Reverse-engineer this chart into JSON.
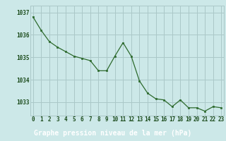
{
  "x": [
    0,
    1,
    2,
    3,
    4,
    5,
    6,
    7,
    8,
    9,
    10,
    11,
    12,
    13,
    14,
    15,
    16,
    17,
    18,
    19,
    20,
    21,
    22,
    23
  ],
  "y": [
    1036.8,
    1036.2,
    1035.7,
    1035.45,
    1035.25,
    1035.05,
    1034.95,
    1034.85,
    1034.4,
    1034.4,
    1035.05,
    1035.65,
    1035.05,
    1033.95,
    1033.4,
    1033.15,
    1033.1,
    1032.8,
    1033.1,
    1032.75,
    1032.75,
    1032.6,
    1032.8,
    1032.75
  ],
  "line_color": "#2d6a2d",
  "marker_color": "#2d6a2d",
  "bg_color": "#cce8e8",
  "grid_color": "#aac8c8",
  "xlabel": "Graphe pression niveau de la mer (hPa)",
  "xlabel_fontsize": 7,
  "tick_color": "#1a4a1a",
  "ylim": [
    1032.4,
    1037.3
  ],
  "yticks": [
    1033,
    1034,
    1035,
    1036,
    1037
  ],
  "xticks": [
    0,
    1,
    2,
    3,
    4,
    5,
    6,
    7,
    8,
    9,
    10,
    11,
    12,
    13,
    14,
    15,
    16,
    17,
    18,
    19,
    20,
    21,
    22,
    23
  ],
  "xticklabels": [
    "0",
    "1",
    "2",
    "3",
    "4",
    "5",
    "6",
    "7",
    "8",
    "9",
    "10",
    "11",
    "12",
    "13",
    "14",
    "15",
    "16",
    "17",
    "18",
    "19",
    "20",
    "21",
    "22",
    "23"
  ],
  "tick_fontsize": 5.5,
  "banner_bg": "#2d6a2d",
  "banner_text_color": "#ffffff"
}
